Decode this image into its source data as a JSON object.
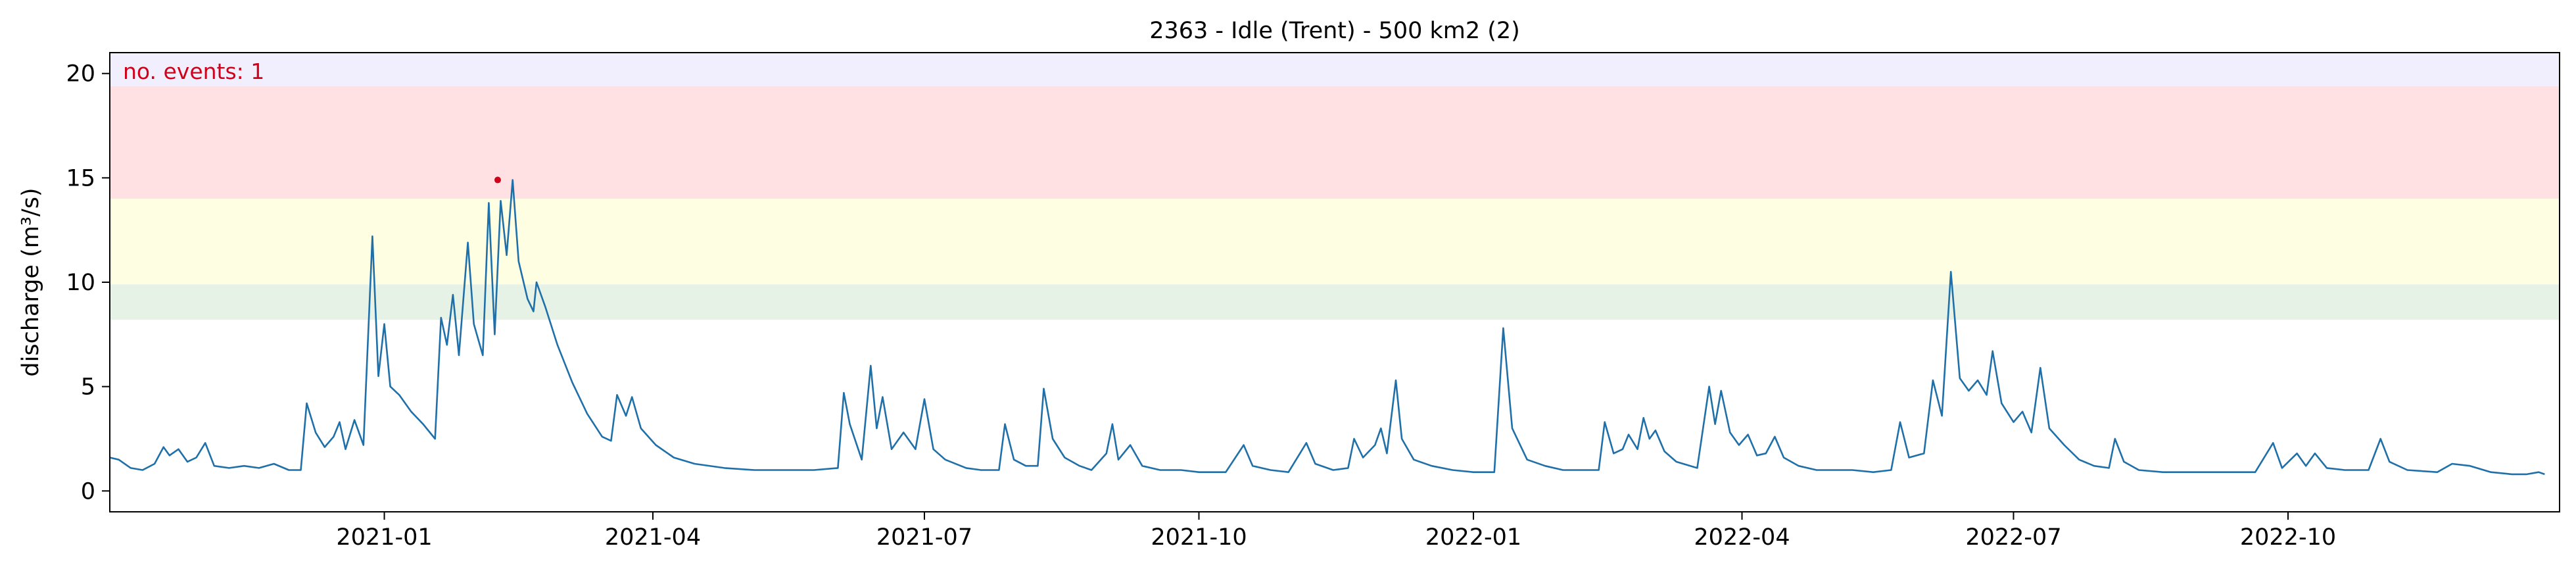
{
  "chart_data": {
    "type": "line",
    "title": "2363 - Idle (Trent) - 500 km2 (2)",
    "xlabel": "",
    "ylabel": "discharge (m³/s)",
    "x_range": [
      "2020-10-01",
      "2022-12-31"
    ],
    "ylim": [
      -1,
      21
    ],
    "y_ticks": [
      0,
      5,
      10,
      15,
      20
    ],
    "x_ticks": [
      "2021-01-01",
      "2021-04-01",
      "2021-07-01",
      "2021-10-01",
      "2022-01-01",
      "2022-04-01",
      "2022-07-01",
      "2022-10-01"
    ],
    "x_tick_labels": [
      "2021-01",
      "2021-04",
      "2021-07",
      "2021-10",
      "2022-01",
      "2022-04",
      "2022-07",
      "2022-10"
    ],
    "grid": false,
    "threshold_bands": [
      {
        "from": 8.2,
        "to": 9.9,
        "color": "#e6f2e6"
      },
      {
        "from": 9.9,
        "to": 14.0,
        "color": "#fefee3"
      },
      {
        "from": 14.0,
        "to": 19.4,
        "color": "#ffe1e3"
      },
      {
        "from": 19.4,
        "to": 21,
        "color": "#f1effd"
      }
    ],
    "annotation": {
      "text": "no. events: 1",
      "color": "#d0021b",
      "position": "top-left"
    },
    "event_marker": {
      "x": "2021-02-08",
      "y": 14.9,
      "color": "#d0021b"
    },
    "series": [
      {
        "color": "#1f6fa8",
        "points": [
          [
            "2020-10-01",
            1.6
          ],
          [
            "2020-10-04",
            1.5
          ],
          [
            "2020-10-08",
            1.1
          ],
          [
            "2020-10-12",
            1.0
          ],
          [
            "2020-10-16",
            1.3
          ],
          [
            "2020-10-19",
            2.1
          ],
          [
            "2020-10-21",
            1.7
          ],
          [
            "2020-10-24",
            2.0
          ],
          [
            "2020-10-27",
            1.4
          ],
          [
            "2020-10-30",
            1.6
          ],
          [
            "2020-11-02",
            2.3
          ],
          [
            "2020-11-05",
            1.2
          ],
          [
            "2020-11-10",
            1.1
          ],
          [
            "2020-11-15",
            1.2
          ],
          [
            "2020-11-20",
            1.1
          ],
          [
            "2020-11-25",
            1.3
          ],
          [
            "2020-11-30",
            1.0
          ],
          [
            "2020-12-04",
            1.0
          ],
          [
            "2020-12-06",
            4.2
          ],
          [
            "2020-12-09",
            2.8
          ],
          [
            "2020-12-12",
            2.1
          ],
          [
            "2020-12-15",
            2.6
          ],
          [
            "2020-12-17",
            3.3
          ],
          [
            "2020-12-19",
            2.0
          ],
          [
            "2020-12-22",
            3.4
          ],
          [
            "2020-12-25",
            2.2
          ],
          [
            "2020-12-28",
            12.2
          ],
          [
            "2020-12-30",
            5.5
          ],
          [
            "2021-01-01",
            8.0
          ],
          [
            "2021-01-03",
            5.0
          ],
          [
            "2021-01-06",
            4.6
          ],
          [
            "2021-01-10",
            3.8
          ],
          [
            "2021-01-14",
            3.2
          ],
          [
            "2021-01-18",
            2.5
          ],
          [
            "2021-01-20",
            8.3
          ],
          [
            "2021-01-22",
            7.0
          ],
          [
            "2021-01-24",
            9.4
          ],
          [
            "2021-01-26",
            6.5
          ],
          [
            "2021-01-29",
            11.9
          ],
          [
            "2021-01-31",
            8.0
          ],
          [
            "2021-02-03",
            6.5
          ],
          [
            "2021-02-05",
            13.8
          ],
          [
            "2021-02-07",
            7.5
          ],
          [
            "2021-02-09",
            13.9
          ],
          [
            "2021-02-11",
            11.3
          ],
          [
            "2021-02-13",
            14.9
          ],
          [
            "2021-02-15",
            11.0
          ],
          [
            "2021-02-18",
            9.2
          ],
          [
            "2021-02-20",
            8.6
          ],
          [
            "2021-02-21",
            10.0
          ],
          [
            "2021-02-24",
            8.8
          ],
          [
            "2021-02-28",
            7.0
          ],
          [
            "2021-03-05",
            5.2
          ],
          [
            "2021-03-10",
            3.7
          ],
          [
            "2021-03-15",
            2.6
          ],
          [
            "2021-03-18",
            2.4
          ],
          [
            "2021-03-20",
            4.6
          ],
          [
            "2021-03-23",
            3.6
          ],
          [
            "2021-03-25",
            4.5
          ],
          [
            "2021-03-28",
            3.0
          ],
          [
            "2021-04-02",
            2.2
          ],
          [
            "2021-04-08",
            1.6
          ],
          [
            "2021-04-15",
            1.3
          ],
          [
            "2021-04-25",
            1.1
          ],
          [
            "2021-05-05",
            1.0
          ],
          [
            "2021-05-15",
            1.0
          ],
          [
            "2021-05-25",
            1.0
          ],
          [
            "2021-06-02",
            1.1
          ],
          [
            "2021-06-04",
            4.7
          ],
          [
            "2021-06-06",
            3.2
          ],
          [
            "2021-06-10",
            1.5
          ],
          [
            "2021-06-13",
            6.0
          ],
          [
            "2021-06-15",
            3.0
          ],
          [
            "2021-06-17",
            4.5
          ],
          [
            "2021-06-20",
            2.0
          ],
          [
            "2021-06-24",
            2.8
          ],
          [
            "2021-06-28",
            2.0
          ],
          [
            "2021-07-01",
            4.4
          ],
          [
            "2021-07-04",
            2.0
          ],
          [
            "2021-07-08",
            1.5
          ],
          [
            "2021-07-15",
            1.1
          ],
          [
            "2021-07-20",
            1.0
          ],
          [
            "2021-07-26",
            1.0
          ],
          [
            "2021-07-28",
            3.2
          ],
          [
            "2021-07-31",
            1.5
          ],
          [
            "2021-08-04",
            1.2
          ],
          [
            "2021-08-08",
            1.2
          ],
          [
            "2021-08-10",
            4.9
          ],
          [
            "2021-08-13",
            2.5
          ],
          [
            "2021-08-17",
            1.6
          ],
          [
            "2021-08-22",
            1.2
          ],
          [
            "2021-08-26",
            1.0
          ],
          [
            "2021-08-31",
            1.8
          ],
          [
            "2021-09-02",
            3.2
          ],
          [
            "2021-09-04",
            1.5
          ],
          [
            "2021-09-08",
            2.2
          ],
          [
            "2021-09-12",
            1.2
          ],
          [
            "2021-09-18",
            1.0
          ],
          [
            "2021-09-25",
            1.0
          ],
          [
            "2021-10-01",
            0.9
          ],
          [
            "2021-10-10",
            0.9
          ],
          [
            "2021-10-16",
            2.2
          ],
          [
            "2021-10-19",
            1.2
          ],
          [
            "2021-10-25",
            1.0
          ],
          [
            "2021-10-31",
            0.9
          ],
          [
            "2021-11-06",
            2.3
          ],
          [
            "2021-11-09",
            1.3
          ],
          [
            "2021-11-15",
            1.0
          ],
          [
            "2021-11-20",
            1.1
          ],
          [
            "2021-11-22",
            2.5
          ],
          [
            "2021-11-25",
            1.6
          ],
          [
            "2021-11-29",
            2.2
          ],
          [
            "2021-12-01",
            3.0
          ],
          [
            "2021-12-03",
            1.8
          ],
          [
            "2021-12-06",
            5.3
          ],
          [
            "2021-12-08",
            2.5
          ],
          [
            "2021-12-12",
            1.5
          ],
          [
            "2021-12-18",
            1.2
          ],
          [
            "2021-12-25",
            1.0
          ],
          [
            "2022-01-01",
            0.9
          ],
          [
            "2022-01-08",
            0.9
          ],
          [
            "2022-01-11",
            7.8
          ],
          [
            "2022-01-14",
            3.0
          ],
          [
            "2022-01-19",
            1.5
          ],
          [
            "2022-01-25",
            1.2
          ],
          [
            "2022-01-31",
            1.0
          ],
          [
            "2022-02-08",
            1.0
          ],
          [
            "2022-02-12",
            1.0
          ],
          [
            "2022-02-14",
            3.3
          ],
          [
            "2022-02-17",
            1.8
          ],
          [
            "2022-02-20",
            2.0
          ],
          [
            "2022-02-22",
            2.7
          ],
          [
            "2022-02-25",
            2.0
          ],
          [
            "2022-02-27",
            3.5
          ],
          [
            "2022-03-01",
            2.5
          ],
          [
            "2022-03-03",
            2.9
          ],
          [
            "2022-03-06",
            1.9
          ],
          [
            "2022-03-10",
            1.4
          ],
          [
            "2022-03-17",
            1.1
          ],
          [
            "2022-03-21",
            5.0
          ],
          [
            "2022-03-23",
            3.2
          ],
          [
            "2022-03-25",
            4.8
          ],
          [
            "2022-03-28",
            2.8
          ],
          [
            "2022-03-31",
            2.2
          ],
          [
            "2022-04-03",
            2.7
          ],
          [
            "2022-04-06",
            1.7
          ],
          [
            "2022-04-09",
            1.8
          ],
          [
            "2022-04-12",
            2.6
          ],
          [
            "2022-04-15",
            1.6
          ],
          [
            "2022-04-20",
            1.2
          ],
          [
            "2022-04-26",
            1.0
          ],
          [
            "2022-05-01",
            1.0
          ],
          [
            "2022-05-08",
            1.0
          ],
          [
            "2022-05-15",
            0.9
          ],
          [
            "2022-05-21",
            1.0
          ],
          [
            "2022-05-24",
            3.3
          ],
          [
            "2022-05-27",
            1.6
          ],
          [
            "2022-06-01",
            1.8
          ],
          [
            "2022-06-04",
            5.3
          ],
          [
            "2022-06-07",
            3.6
          ],
          [
            "2022-06-10",
            10.5
          ],
          [
            "2022-06-13",
            5.4
          ],
          [
            "2022-06-16",
            4.8
          ],
          [
            "2022-06-19",
            5.3
          ],
          [
            "2022-06-22",
            4.6
          ],
          [
            "2022-06-24",
            6.7
          ],
          [
            "2022-06-27",
            4.2
          ],
          [
            "2022-07-01",
            3.3
          ],
          [
            "2022-07-04",
            3.8
          ],
          [
            "2022-07-07",
            2.8
          ],
          [
            "2022-07-10",
            5.9
          ],
          [
            "2022-07-13",
            3.0
          ],
          [
            "2022-07-18",
            2.2
          ],
          [
            "2022-07-23",
            1.5
          ],
          [
            "2022-07-28",
            1.2
          ],
          [
            "2022-08-02",
            1.1
          ],
          [
            "2022-08-04",
            2.5
          ],
          [
            "2022-08-07",
            1.4
          ],
          [
            "2022-08-12",
            1.0
          ],
          [
            "2022-08-20",
            0.9
          ],
          [
            "2022-08-30",
            0.9
          ],
          [
            "2022-09-10",
            0.9
          ],
          [
            "2022-09-20",
            0.9
          ],
          [
            "2022-09-26",
            2.3
          ],
          [
            "2022-09-29",
            1.1
          ],
          [
            "2022-10-04",
            1.8
          ],
          [
            "2022-10-07",
            1.2
          ],
          [
            "2022-10-10",
            1.8
          ],
          [
            "2022-10-14",
            1.1
          ],
          [
            "2022-10-20",
            1.0
          ],
          [
            "2022-10-28",
            1.0
          ],
          [
            "2022-11-01",
            2.5
          ],
          [
            "2022-11-04",
            1.4
          ],
          [
            "2022-11-10",
            1.0
          ],
          [
            "2022-11-20",
            0.9
          ],
          [
            "2022-11-25",
            1.3
          ],
          [
            "2022-12-01",
            1.2
          ],
          [
            "2022-12-08",
            0.9
          ],
          [
            "2022-12-15",
            0.8
          ],
          [
            "2022-12-20",
            0.8
          ],
          [
            "2022-12-24",
            0.9
          ],
          [
            "2022-12-26",
            0.8
          ]
        ]
      }
    ]
  }
}
